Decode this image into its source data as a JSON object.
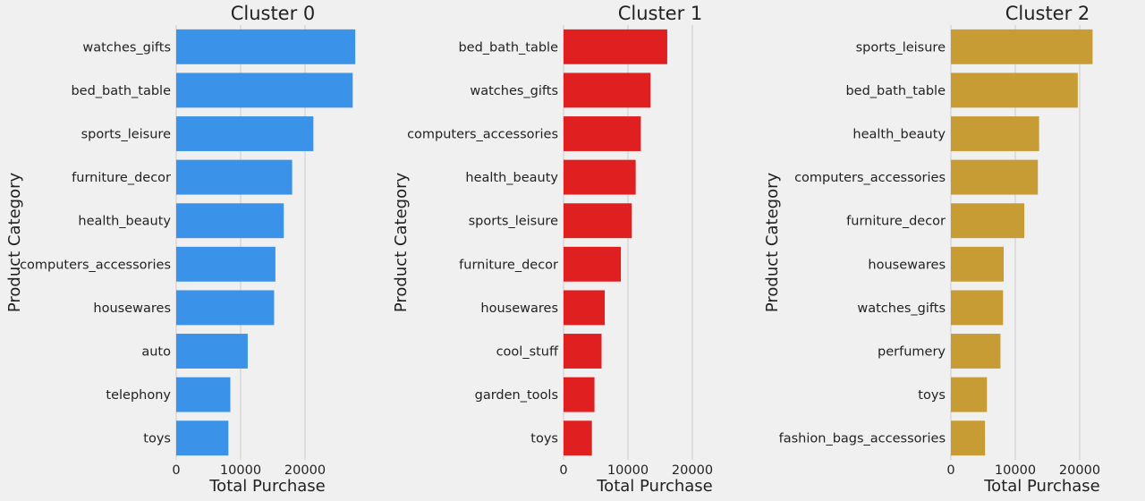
{
  "chart_data": [
    {
      "type": "bar",
      "orientation": "horizontal",
      "title": "Cluster 0",
      "xlabel": "Total Purchase",
      "ylabel": "Product Category",
      "color": "#3a93e8",
      "xlim": [
        0,
        30000
      ],
      "xticks": [
        0,
        10000,
        20000
      ],
      "grid": true,
      "categories": [
        "watches_gifts",
        "bed_bath_table",
        "sports_leisure",
        "furniture_decor",
        "health_beauty",
        "computers_accessories",
        "housewares",
        "auto",
        "telephony",
        "toys"
      ],
      "values": [
        27800,
        27400,
        21300,
        18000,
        16700,
        15400,
        15200,
        11100,
        8400,
        8100
      ]
    },
    {
      "type": "bar",
      "orientation": "horizontal",
      "title": "Cluster 1",
      "xlabel": "Total Purchase",
      "ylabel": "Product Category",
      "color": "#e01f21",
      "xlim": [
        0,
        30000
      ],
      "xticks": [
        0,
        10000,
        20000
      ],
      "grid": true,
      "categories": [
        "bed_bath_table",
        "watches_gifts",
        "computers_accessories",
        "health_beauty",
        "sports_leisure",
        "furniture_decor",
        "housewares",
        "cool_stuff",
        "garden_tools",
        "toys"
      ],
      "values": [
        16100,
        13500,
        12000,
        11200,
        10600,
        8900,
        6400,
        5900,
        4800,
        4400
      ]
    },
    {
      "type": "bar",
      "orientation": "horizontal",
      "title": "Cluster 2",
      "xlabel": "Total Purchase",
      "ylabel": "Product Category",
      "color": "#c79c35",
      "xlim": [
        0,
        30000
      ],
      "xticks": [
        0,
        10000,
        20000
      ],
      "grid": true,
      "categories": [
        "sports_leisure",
        "bed_bath_table",
        "health_beauty",
        "computers_accessories",
        "furniture_decor",
        "housewares",
        "watches_gifts",
        "perfumery",
        "toys",
        "fashion_bags_accessories"
      ],
      "values": [
        22000,
        19700,
        13700,
        13500,
        11400,
        8200,
        8100,
        7700,
        5600,
        5300
      ]
    }
  ]
}
